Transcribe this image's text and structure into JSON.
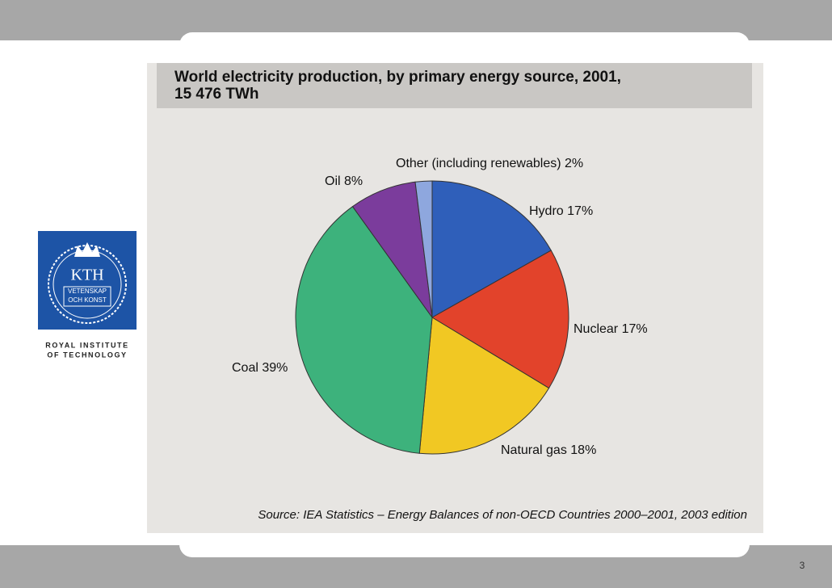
{
  "chart_data": {
    "type": "pie",
    "title": "World electricity production, by primary energy source, 2001,",
    "subtitle": "15 476 TWh",
    "categories": [
      "Hydro",
      "Nuclear",
      "Natural gas",
      "Coal",
      "Oil",
      "Other (including renewables)"
    ],
    "values": [
      17,
      17,
      18,
      39,
      8,
      2
    ],
    "value_labels": [
      "17%",
      "17%",
      "18%",
      "39%",
      "8%",
      "2%"
    ],
    "colors": [
      "#2f5fba",
      "#e2432b",
      "#f1c823",
      "#3db27c",
      "#7b3c9c",
      "#8ea7de"
    ],
    "source": "Source: IEA Statistics – Energy Balances of non-OECD Countries 2000–2001, 2003 edition"
  },
  "logo": {
    "name": "KTH",
    "line1": "VETENSKAP",
    "line2": "OCH KONST",
    "caption1": "ROYAL INSTITUTE",
    "caption2": "OF TECHNOLOGY"
  },
  "page_number": "3"
}
